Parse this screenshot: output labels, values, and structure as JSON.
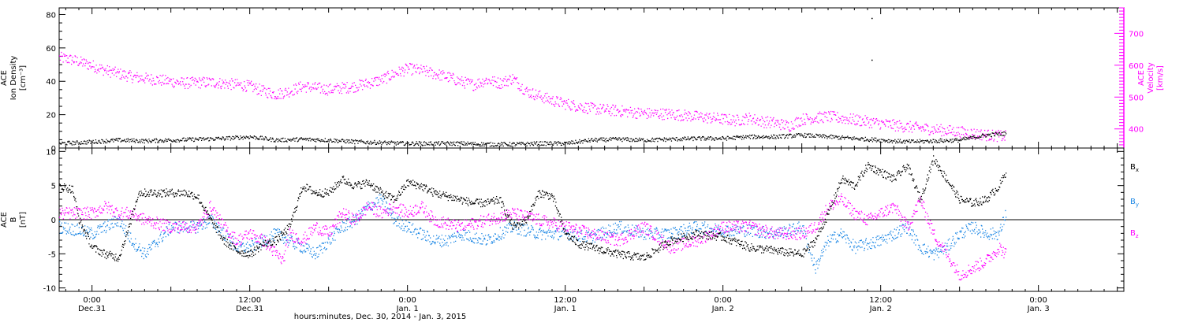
{
  "colors": {
    "axis": "#000000",
    "density": "#000000",
    "velocity": "#ff00ff",
    "bx": "#000000",
    "by": "#1e88e5",
    "bz": "#ff00ff"
  },
  "x_axis": {
    "title": "hours:minutes, Dec. 30, 2014 - Jan.  3, 2015",
    "range_hours": [
      -2.5,
      78.5
    ],
    "ticks": [
      {
        "t": 0,
        "time": "0:00",
        "date": "Dec.31"
      },
      {
        "t": 12,
        "time": "12:00",
        "date": "Dec.31"
      },
      {
        "t": 24,
        "time": "0:00",
        "date": "Jan. 1"
      },
      {
        "t": 36,
        "time": "12:00",
        "date": "Jan. 1"
      },
      {
        "t": 48,
        "time": "0:00",
        "date": "Jan. 2"
      },
      {
        "t": 60,
        "time": "12:00",
        "date": "Jan. 2"
      },
      {
        "t": 72,
        "time": "0:00",
        "date": "Jan. 3"
      }
    ]
  },
  "chart_data": [
    {
      "type": "scatter",
      "panel": "top",
      "left_axis": {
        "label_lines": [
          "ACE",
          "Ion Density",
          "[cm⁻³]"
        ],
        "ylim": [
          0,
          84
        ],
        "ticks": [
          0,
          20,
          40,
          60,
          80
        ]
      },
      "right_axis": {
        "label_lines": [
          "ACE",
          "Velocity",
          "[km/s]"
        ],
        "ylim": [
          340,
          780
        ],
        "ticks": [
          400,
          500,
          600,
          700
        ]
      },
      "series": [
        {
          "key": "density",
          "axis": "left",
          "x": [
            -2.5,
            -1,
            0,
            2,
            4,
            6,
            8,
            10,
            12,
            13,
            14,
            16,
            18,
            20,
            22,
            24,
            26,
            28,
            30,
            32,
            34,
            36,
            38,
            40,
            42,
            44,
            46,
            48,
            50,
            52,
            54,
            56,
            58,
            60,
            62,
            64,
            66,
            68,
            69.5
          ],
          "values": [
            3,
            3.5,
            4,
            5,
            4.5,
            5,
            5.5,
            6,
            7,
            6,
            5,
            5.5,
            5,
            4,
            3.5,
            3,
            3,
            3,
            2.5,
            2.5,
            3,
            3,
            5,
            5.5,
            5,
            5.5,
            6,
            6,
            7,
            7,
            8,
            7,
            6,
            5,
            4,
            4.5,
            5,
            8,
            9
          ],
          "outliers": [
            {
              "x": 59.3,
              "y": 78
            },
            {
              "x": 59.3,
              "y": 53
            }
          ]
        },
        {
          "key": "velocity",
          "axis": "right",
          "x": [
            -2.5,
            -1.5,
            0,
            1,
            2,
            3,
            5,
            7,
            9,
            11,
            12,
            13,
            14,
            15,
            16,
            17,
            18,
            20,
            22,
            23,
            24,
            25,
            26,
            27,
            28,
            29,
            30,
            31,
            32,
            33,
            34,
            35,
            36,
            38,
            40,
            42,
            44,
            46,
            48,
            49,
            50,
            51,
            52,
            53,
            54,
            56,
            58,
            60,
            62,
            64,
            66,
            68,
            69.5
          ],
          "values": [
            625,
            618,
            600,
            585,
            575,
            565,
            555,
            545,
            548,
            540,
            535,
            520,
            510,
            520,
            535,
            530,
            525,
            535,
            555,
            575,
            590,
            585,
            575,
            565,
            550,
            540,
            555,
            545,
            560,
            520,
            505,
            490,
            480,
            465,
            458,
            450,
            448,
            440,
            432,
            428,
            435,
            424,
            420,
            410,
            432,
            440,
            430,
            418,
            408,
            400,
            392,
            382,
            378
          ]
        }
      ]
    },
    {
      "type": "scatter",
      "panel": "bottom",
      "left_axis": {
        "label_lines": [
          "ACE",
          "B",
          "[nT]"
        ],
        "ylim": [
          -10.5,
          10.5
        ],
        "ticks": [
          -10,
          -5,
          0,
          5,
          10
        ]
      },
      "legend": {
        "position": "right",
        "entries": [
          {
            "key": "bx",
            "label": "B",
            "sub": "x"
          },
          {
            "key": "by",
            "label": "B",
            "sub": "y"
          },
          {
            "key": "bz",
            "label": "B",
            "sub": "z"
          }
        ]
      },
      "series": [
        {
          "key": "bx",
          "x": [
            -2.5,
            -1.5,
            -1,
            0,
            1,
            2,
            2.8,
            3.5,
            5,
            7,
            8,
            9,
            10,
            11,
            12,
            13,
            14,
            15,
            16,
            17,
            18,
            19,
            20,
            21,
            22,
            23,
            24,
            25,
            26,
            27,
            28,
            29,
            30,
            31,
            32,
            33,
            34,
            35,
            36,
            37,
            38,
            40,
            42,
            44,
            46,
            48,
            50,
            52,
            54,
            55,
            56,
            57,
            58,
            59,
            60,
            61,
            62,
            63,
            64,
            65,
            66,
            67,
            68,
            69,
            69.5
          ],
          "values": [
            5,
            4.5,
            0,
            -4,
            -5,
            -5.5,
            -1,
            4,
            4,
            4,
            3.5,
            0,
            -3,
            -4.5,
            -5,
            -3.5,
            -3,
            -1,
            5,
            4,
            4,
            6,
            5,
            5.5,
            4,
            3,
            5.5,
            5,
            4,
            3.5,
            3,
            2.5,
            2.5,
            3,
            -1,
            0,
            4,
            3.5,
            -2,
            -3.5,
            -4,
            -5,
            -5.5,
            -3,
            -2,
            -2.5,
            -4,
            -4.5,
            -5,
            -3,
            1,
            6,
            5,
            8,
            7,
            6,
            8,
            3,
            9,
            6,
            3,
            2.5,
            3,
            5,
            7
          ]
        },
        {
          "key": "by",
          "x": [
            -2.5,
            -1,
            0,
            1,
            2,
            3,
            4,
            6,
            8,
            9,
            10,
            11,
            12,
            13,
            14,
            15,
            16,
            17,
            18,
            19,
            20,
            21,
            22,
            23,
            24,
            25,
            26,
            27,
            28,
            30,
            32,
            34,
            36,
            38,
            40,
            42,
            44,
            46,
            48,
            50,
            52,
            54,
            55,
            56,
            57,
            58,
            59,
            60,
            61,
            62,
            63,
            64,
            65,
            66,
            67,
            68,
            69,
            69.5
          ],
          "values": [
            -1,
            -1.5,
            -2,
            -1,
            0,
            -3,
            -5,
            -1,
            -1,
            0,
            -2,
            -4,
            -4,
            -3,
            -2,
            -3,
            -4,
            -5,
            -3,
            -1,
            0,
            2,
            3,
            0,
            -1,
            -2,
            -3,
            -3,
            -2,
            -3,
            -1,
            -2,
            -2,
            -2.5,
            -1,
            -2,
            -2,
            -1,
            -1.5,
            -1.5,
            -2,
            -1,
            -7,
            -3,
            -2,
            -4,
            -3.5,
            -3,
            -2,
            -1,
            -4,
            -5,
            -4,
            -2,
            -1,
            -2,
            -2,
            1
          ]
        },
        {
          "key": "bz",
          "x": [
            -2.5,
            -1,
            0,
            1,
            2,
            3,
            4,
            6,
            8,
            9,
            10,
            11,
            12,
            13,
            14,
            14.5,
            15,
            16,
            17,
            18,
            19,
            20,
            21,
            22,
            23,
            24,
            25,
            26,
            28,
            30,
            32,
            34,
            36,
            38,
            40,
            42,
            44,
            46,
            48,
            50,
            52,
            54,
            55,
            56,
            57,
            58,
            59,
            60,
            61,
            62,
            63,
            64,
            65,
            66,
            67,
            68,
            69,
            69.5
          ],
          "values": [
            1,
            1,
            1,
            2,
            1,
            1,
            0,
            -1,
            -1,
            2,
            -1,
            -3,
            -2,
            -3,
            -5,
            -6,
            -2,
            -3,
            -1,
            -2,
            1,
            0,
            2,
            1,
            2,
            1,
            2,
            0,
            -1,
            0,
            1,
            0,
            -1,
            -2,
            -3,
            -1,
            -4,
            -3,
            -1,
            -1,
            -2,
            -2,
            -1,
            2,
            3,
            1,
            0,
            1,
            2,
            -1,
            3,
            -2,
            -5,
            -8,
            -7,
            -6,
            -4,
            -5
          ]
        }
      ]
    }
  ]
}
